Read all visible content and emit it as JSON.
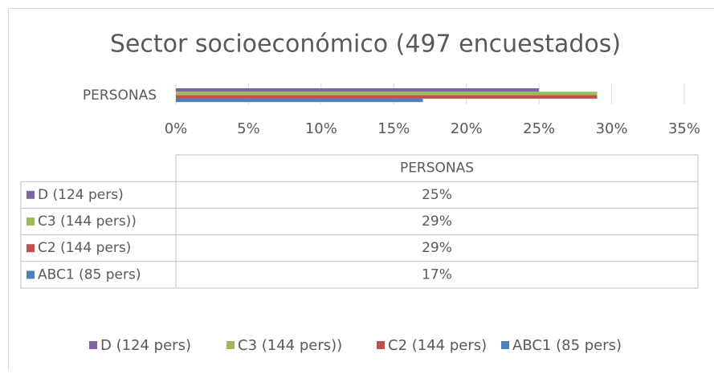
{
  "chart_data": {
    "type": "bar",
    "orientation": "horizontal",
    "title": "Sector socioeconómico (497 encuestados)",
    "categories": [
      "PERSONAS"
    ],
    "series": [
      {
        "name": "D (124 pers)",
        "color": "#8064a2",
        "values": [
          25
        ],
        "value_labels": [
          "25%"
        ]
      },
      {
        "name": "C3 (144 pers))",
        "color": "#9bbb59",
        "values": [
          29
        ],
        "value_labels": [
          "29%"
        ]
      },
      {
        "name": "C2 (144 pers)",
        "color": "#c0504d",
        "values": [
          29
        ],
        "value_labels": [
          "29%"
        ]
      },
      {
        "name": "ABC1 (85 pers)",
        "color": "#4f81bd",
        "values": [
          17
        ],
        "value_labels": [
          "17%"
        ]
      }
    ],
    "xlim": [
      0,
      35
    ],
    "xticks": [
      {
        "value": 0,
        "label": "0%"
      },
      {
        "value": 5,
        "label": "5%"
      },
      {
        "value": 10,
        "label": "10%"
      },
      {
        "value": 15,
        "label": "15%"
      },
      {
        "value": 20,
        "label": "20%"
      },
      {
        "value": 25,
        "label": "25%"
      },
      {
        "value": 30,
        "label": "30%"
      },
      {
        "value": 35,
        "label": "35%"
      }
    ],
    "grid": true,
    "data_table": true,
    "legend": "bottom"
  }
}
